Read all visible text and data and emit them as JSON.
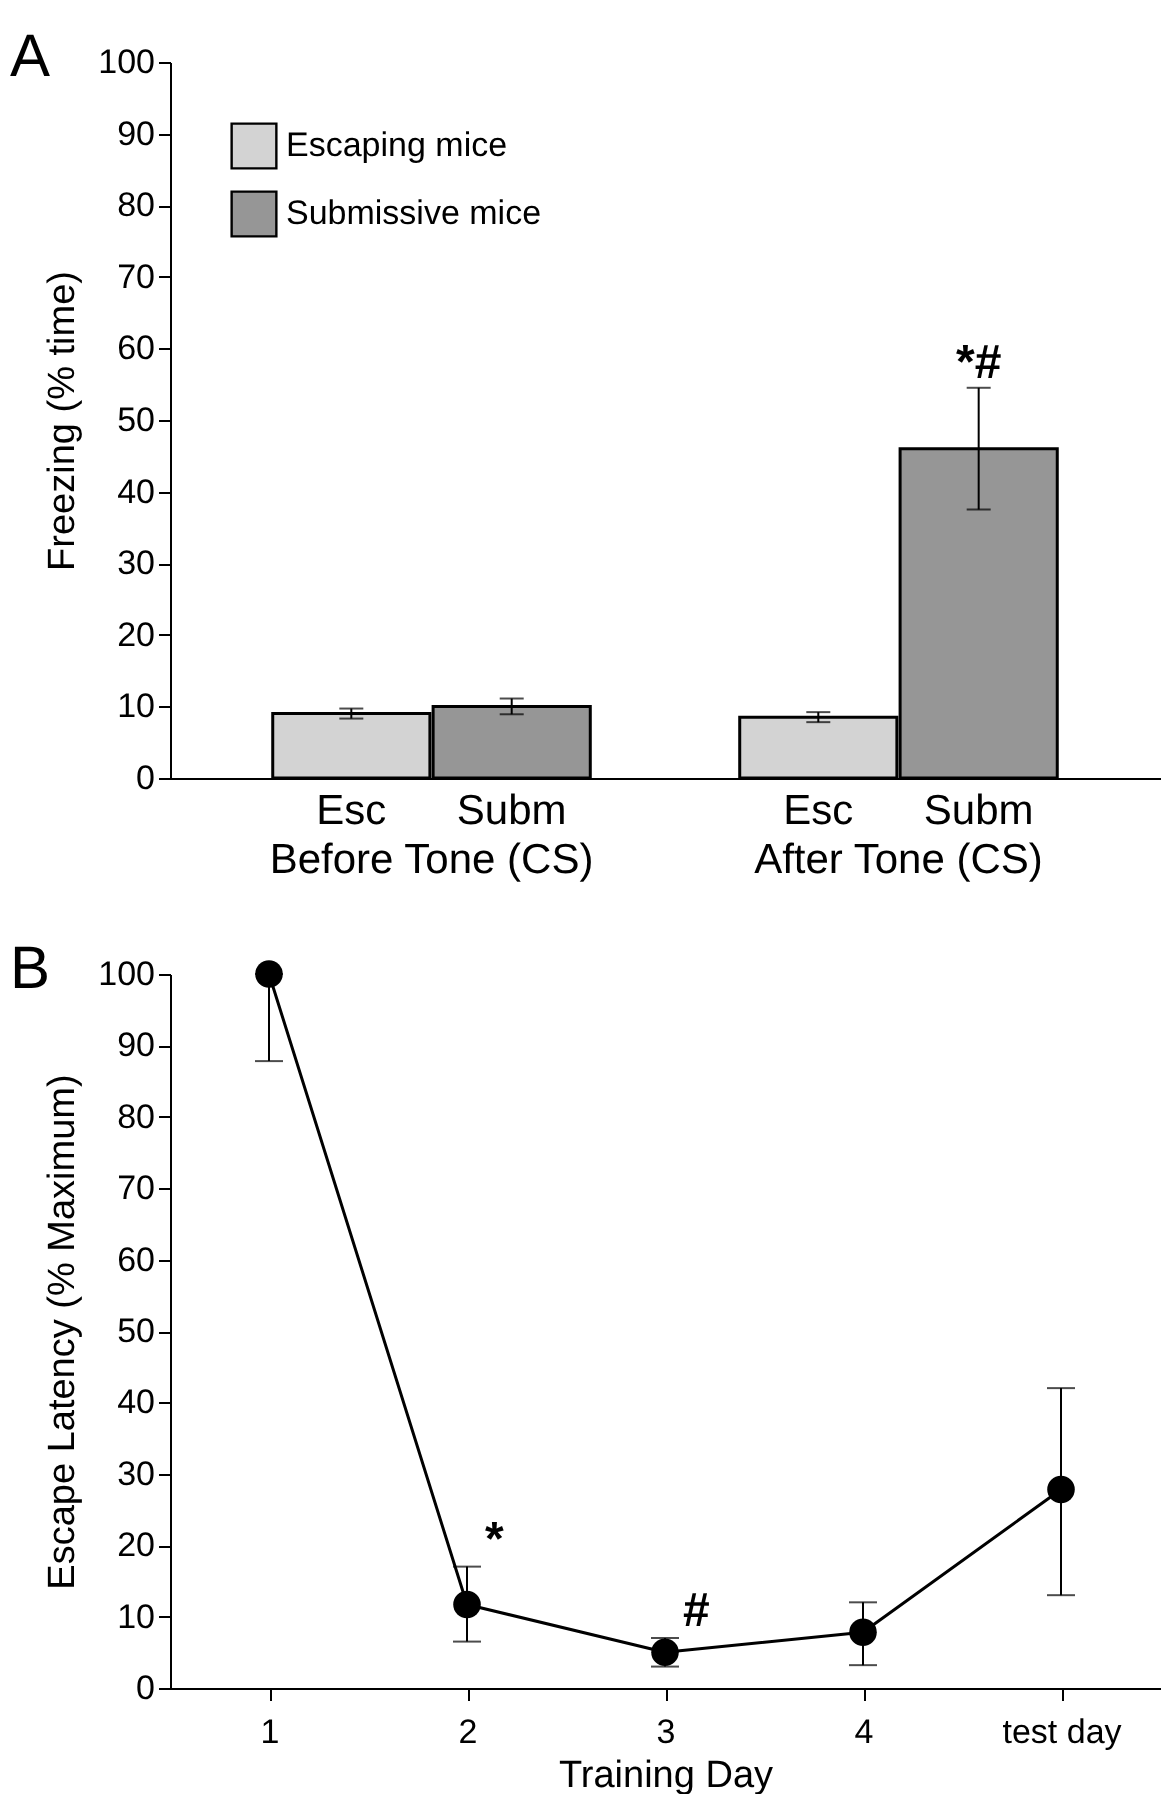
{
  "chart_data": [
    {
      "type": "bar",
      "title": "A",
      "ylabel": "Freezing (% time)",
      "categories": [
        "Before Tone (CS)",
        "After Tone (CS)"
      ],
      "series": [
        {
          "name": "Escaping mice",
          "color": "#d3d3d3",
          "values": [
            9,
            8.5
          ],
          "errors": [
            0.7,
            0.7
          ]
        },
        {
          "name": "Submissive mice",
          "color": "#969696",
          "values": [
            10,
            46
          ],
          "errors": [
            1.1,
            8.5
          ]
        }
      ],
      "ylim": [
        0,
        100
      ],
      "yticks": [
        0,
        10,
        20,
        30,
        40,
        50,
        60,
        70,
        80,
        90,
        100
      ],
      "legend": "top left",
      "annotations": [
        "Esc",
        "Subm",
        "Esc",
        "Subm",
        "*#"
      ]
    },
    {
      "type": "line",
      "title": "B",
      "xlabel": "Training Day",
      "ylabel": "Escape Latency (% Maximum)",
      "categories": [
        "1",
        "2",
        "3",
        "4",
        "test day"
      ],
      "series": [
        {
          "color": "#000000",
          "values": [
            100,
            11.7,
            5,
            7.8,
            27.8
          ],
          "errors": [
            [
              87.8,
              100
            ],
            [
              6.5,
              17
            ],
            [
              3,
              7
            ],
            [
              3.2,
              12
            ],
            [
              13,
              42
            ]
          ]
        }
      ],
      "marker": "circle",
      "line_style": "solid",
      "ylim": [
        0,
        100
      ],
      "yticks": [
        0,
        10,
        20,
        30,
        40,
        50,
        60,
        70,
        80,
        90,
        100
      ],
      "annotations": [
        {
          "text": "*",
          "x": "2",
          "y": 17
        },
        {
          "text": "#",
          "x": "3",
          "y": 7
        }
      ]
    }
  ]
}
